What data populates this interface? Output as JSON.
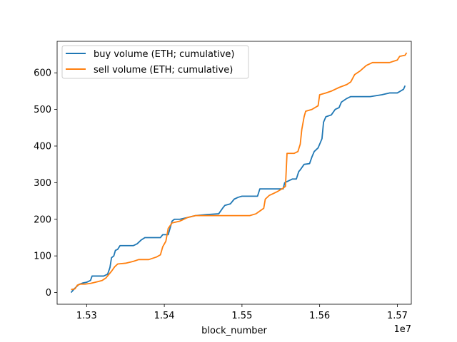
{
  "chart_data": {
    "type": "line",
    "title": "",
    "xlabel": "block_number",
    "ylabel": "",
    "x_offset_label": "1e7",
    "xlim": [
      15262000,
      15718000
    ],
    "ylim": [
      -32,
      686
    ],
    "x_ticks": [
      15300000,
      15400000,
      15500000,
      15600000,
      15700000
    ],
    "x_tick_labels": [
      "1.53",
      "1.54",
      "1.55",
      "1.56",
      "1.57"
    ],
    "y_ticks": [
      0,
      100,
      200,
      300,
      400,
      500,
      600
    ],
    "y_tick_labels": [
      "0",
      "100",
      "200",
      "300",
      "400",
      "500",
      "600"
    ],
    "grid": false,
    "legend_position": "upper-left",
    "series": [
      {
        "name": "buy volume (ETH; cumulative)",
        "color": "#1f77b4",
        "points": [
          [
            15280000,
            0
          ],
          [
            15282000,
            5
          ],
          [
            15285000,
            12
          ],
          [
            15290000,
            22
          ],
          [
            15295000,
            26
          ],
          [
            15300000,
            28
          ],
          [
            15305000,
            33
          ],
          [
            15307000,
            45
          ],
          [
            15315000,
            45
          ],
          [
            15322000,
            45
          ],
          [
            15327000,
            50
          ],
          [
            15330000,
            68
          ],
          [
            15332000,
            95
          ],
          [
            15335000,
            100
          ],
          [
            15337000,
            115
          ],
          [
            15340000,
            118
          ],
          [
            15343000,
            128
          ],
          [
            15350000,
            128
          ],
          [
            15360000,
            128
          ],
          [
            15365000,
            133
          ],
          [
            15370000,
            143
          ],
          [
            15375000,
            150
          ],
          [
            15385000,
            150
          ],
          [
            15395000,
            150
          ],
          [
            15398000,
            158
          ],
          [
            15405000,
            158
          ],
          [
            15408000,
            180
          ],
          [
            15410000,
            195
          ],
          [
            15413000,
            200
          ],
          [
            15420000,
            200
          ],
          [
            15430000,
            205
          ],
          [
            15440000,
            210
          ],
          [
            15455000,
            213
          ],
          [
            15470000,
            215
          ],
          [
            15475000,
            230
          ],
          [
            15478000,
            238
          ],
          [
            15485000,
            242
          ],
          [
            15490000,
            255
          ],
          [
            15495000,
            260
          ],
          [
            15500000,
            263
          ],
          [
            15510000,
            263
          ],
          [
            15520000,
            263
          ],
          [
            15523000,
            283
          ],
          [
            15540000,
            283
          ],
          [
            15553000,
            283
          ],
          [
            15555000,
            300
          ],
          [
            15560000,
            305
          ],
          [
            15565000,
            310
          ],
          [
            15570000,
            310
          ],
          [
            15573000,
            330
          ],
          [
            15575000,
            335
          ],
          [
            15580000,
            350
          ],
          [
            15587000,
            352
          ],
          [
            15590000,
            370
          ],
          [
            15593000,
            385
          ],
          [
            15598000,
            395
          ],
          [
            15603000,
            420
          ],
          [
            15605000,
            465
          ],
          [
            15608000,
            480
          ],
          [
            15615000,
            485
          ],
          [
            15620000,
            500
          ],
          [
            15625000,
            505
          ],
          [
            15628000,
            520
          ],
          [
            15635000,
            530
          ],
          [
            15640000,
            535
          ],
          [
            15650000,
            535
          ],
          [
            15665000,
            535
          ],
          [
            15680000,
            540
          ],
          [
            15690000,
            545
          ],
          [
            15700000,
            545
          ],
          [
            15708000,
            555
          ],
          [
            15710000,
            565
          ]
        ]
      },
      {
        "name": "sell volume (ETH; cumulative)",
        "color": "#ff7f0e",
        "points": [
          [
            15280000,
            8
          ],
          [
            15285000,
            10
          ],
          [
            15288000,
            20
          ],
          [
            15292000,
            23
          ],
          [
            15298000,
            23
          ],
          [
            15305000,
            25
          ],
          [
            15315000,
            30
          ],
          [
            15320000,
            33
          ],
          [
            15325000,
            40
          ],
          [
            15328000,
            48
          ],
          [
            15332000,
            58
          ],
          [
            15336000,
            70
          ],
          [
            15340000,
            78
          ],
          [
            15350000,
            80
          ],
          [
            15360000,
            85
          ],
          [
            15367000,
            90
          ],
          [
            15375000,
            90
          ],
          [
            15380000,
            90
          ],
          [
            15390000,
            97
          ],
          [
            15395000,
            103
          ],
          [
            15398000,
            125
          ],
          [
            15402000,
            140
          ],
          [
            15405000,
            175
          ],
          [
            15410000,
            190
          ],
          [
            15420000,
            195
          ],
          [
            15425000,
            200
          ],
          [
            15430000,
            205
          ],
          [
            15440000,
            210
          ],
          [
            15460000,
            210
          ],
          [
            15480000,
            210
          ],
          [
            15500000,
            210
          ],
          [
            15510000,
            210
          ],
          [
            15518000,
            215
          ],
          [
            15520000,
            218
          ],
          [
            15528000,
            230
          ],
          [
            15530000,
            255
          ],
          [
            15535000,
            265
          ],
          [
            15545000,
            275
          ],
          [
            15553000,
            285
          ],
          [
            15556000,
            290
          ],
          [
            15558000,
            380
          ],
          [
            15567000,
            380
          ],
          [
            15572000,
            385
          ],
          [
            15575000,
            405
          ],
          [
            15577000,
            445
          ],
          [
            15580000,
            480
          ],
          [
            15582000,
            495
          ],
          [
            15590000,
            500
          ],
          [
            15598000,
            510
          ],
          [
            15600000,
            540
          ],
          [
            15608000,
            545
          ],
          [
            15615000,
            550
          ],
          [
            15625000,
            560
          ],
          [
            15635000,
            568
          ],
          [
            15640000,
            575
          ],
          [
            15645000,
            595
          ],
          [
            15652000,
            605
          ],
          [
            15660000,
            620
          ],
          [
            15668000,
            628
          ],
          [
            15680000,
            628
          ],
          [
            15690000,
            628
          ],
          [
            15700000,
            635
          ],
          [
            15703000,
            645
          ],
          [
            15710000,
            648
          ],
          [
            15712000,
            655
          ]
        ]
      }
    ]
  }
}
